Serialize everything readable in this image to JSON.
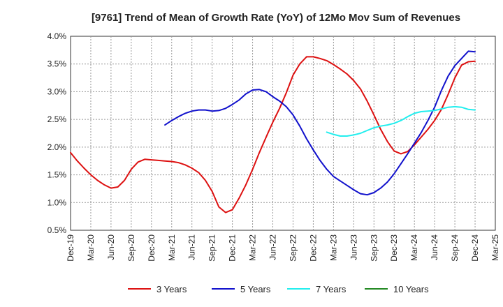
{
  "chart_data": {
    "type": "line",
    "title": "[9761]  Trend of Mean of Growth Rate (YoY) of 12Mo Mov Sum of Revenues",
    "xlabel": "",
    "ylabel": "",
    "ylim": [
      0.5,
      4.0
    ],
    "y_ticks": [
      0.5,
      1.0,
      1.5,
      2.0,
      2.5,
      3.0,
      3.5,
      4.0
    ],
    "y_tick_labels": [
      "0.5%",
      "1.0%",
      "1.5%",
      "2.0%",
      "2.5%",
      "3.0%",
      "3.5%",
      "4.0%"
    ],
    "x_tick_labels": [
      "Dec-19",
      "Mar-20",
      "Jun-20",
      "Sep-20",
      "Dec-20",
      "Mar-21",
      "Jun-21",
      "Sep-21",
      "Dec-21",
      "Mar-22",
      "Jun-22",
      "Sep-22",
      "Dec-22",
      "Mar-23",
      "Jun-23",
      "Sep-23",
      "Dec-23",
      "Mar-24",
      "Jun-24",
      "Sep-24",
      "Dec-24",
      "Mar-25"
    ],
    "x_range_months": [
      0,
      63
    ],
    "grid": true,
    "legend_position": "bottom",
    "series": [
      {
        "name": "3 Years",
        "color": "#dd1111",
        "x": [
          0,
          1,
          2,
          3,
          4,
          5,
          6,
          7,
          8,
          9,
          10,
          11,
          12,
          13,
          14,
          15,
          16,
          17,
          18,
          19,
          20,
          21,
          22,
          23,
          24,
          25,
          26,
          27,
          28,
          29,
          30,
          31,
          32,
          33,
          34,
          35,
          36,
          37,
          38,
          39,
          40,
          41,
          42,
          43,
          44,
          45,
          46,
          47,
          48,
          49,
          50,
          51,
          52,
          53,
          54,
          55,
          56,
          57,
          58,
          59,
          60
        ],
        "values": [
          1.9,
          1.75,
          1.62,
          1.5,
          1.4,
          1.32,
          1.26,
          1.28,
          1.4,
          1.6,
          1.73,
          1.78,
          1.77,
          1.76,
          1.75,
          1.74,
          1.72,
          1.68,
          1.62,
          1.54,
          1.4,
          1.2,
          0.92,
          0.82,
          0.87,
          1.08,
          1.32,
          1.6,
          1.9,
          2.18,
          2.45,
          2.7,
          2.98,
          3.3,
          3.5,
          3.63,
          3.63,
          3.6,
          3.56,
          3.49,
          3.41,
          3.32,
          3.2,
          3.05,
          2.83,
          2.58,
          2.32,
          2.1,
          1.93,
          1.88,
          1.92,
          2.04,
          2.18,
          2.32,
          2.48,
          2.68,
          2.95,
          3.25,
          3.48,
          3.54,
          3.55
        ]
      },
      {
        "name": "5 Years",
        "color": "#1111cc",
        "x": [
          14,
          15,
          16,
          17,
          18,
          19,
          20,
          21,
          22,
          23,
          24,
          25,
          26,
          27,
          28,
          29,
          30,
          31,
          32,
          33,
          34,
          35,
          36,
          37,
          38,
          39,
          40,
          41,
          42,
          43,
          44,
          45,
          46,
          47,
          48,
          49,
          50,
          51,
          52,
          53,
          54,
          55,
          56,
          57,
          58,
          59,
          60
        ],
        "values": [
          2.4,
          2.48,
          2.55,
          2.61,
          2.65,
          2.67,
          2.67,
          2.65,
          2.66,
          2.7,
          2.77,
          2.85,
          2.96,
          3.03,
          3.04,
          3.0,
          2.91,
          2.83,
          2.73,
          2.58,
          2.38,
          2.15,
          1.95,
          1.76,
          1.6,
          1.47,
          1.39,
          1.31,
          1.23,
          1.16,
          1.14,
          1.18,
          1.26,
          1.37,
          1.52,
          1.7,
          1.88,
          2.07,
          2.26,
          2.48,
          2.72,
          3.02,
          3.28,
          3.47,
          3.6,
          3.73,
          3.72
        ]
      },
      {
        "name": "7 Years",
        "color": "#22eeee",
        "x": [
          38,
          39,
          40,
          41,
          42,
          43,
          44,
          45,
          46,
          47,
          48,
          49,
          50,
          51,
          52,
          53,
          54,
          55,
          56,
          57,
          58,
          59,
          60
        ],
        "values": [
          2.27,
          2.23,
          2.2,
          2.2,
          2.22,
          2.25,
          2.3,
          2.35,
          2.38,
          2.4,
          2.43,
          2.48,
          2.55,
          2.61,
          2.64,
          2.65,
          2.66,
          2.69,
          2.72,
          2.73,
          2.72,
          2.68,
          2.67
        ]
      },
      {
        "name": "10 Years",
        "color": "#228822",
        "x": [],
        "values": []
      }
    ]
  }
}
